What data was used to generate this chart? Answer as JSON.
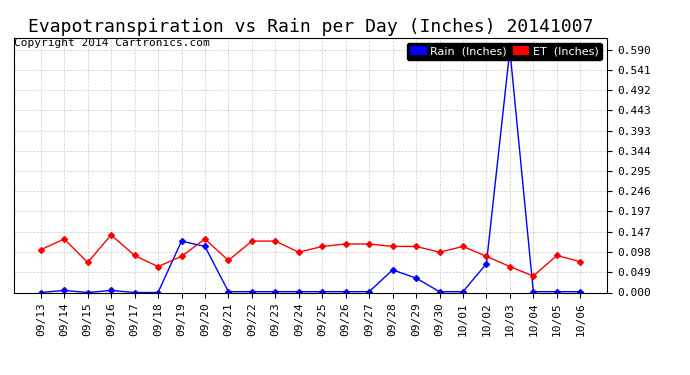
{
  "title": "Evapotranspiration vs Rain per Day (Inches) 20141007",
  "copyright": "Copyright 2014 Cartronics.com",
  "background_color": "#ffffff",
  "grid_color": "#cccccc",
  "x_labels": [
    "09/13",
    "09/14",
    "09/15",
    "09/16",
    "09/17",
    "09/18",
    "09/19",
    "09/20",
    "09/21",
    "09/22",
    "09/23",
    "09/24",
    "09/25",
    "09/26",
    "09/27",
    "09/28",
    "09/29",
    "09/30",
    "10/01",
    "10/02",
    "10/03",
    "10/04",
    "10/05",
    "10/06"
  ],
  "rain_values": [
    0.0,
    0.005,
    0.0,
    0.005,
    0.0,
    0.0,
    0.125,
    0.112,
    0.002,
    0.002,
    0.002,
    0.002,
    0.002,
    0.002,
    0.002,
    0.055,
    0.035,
    0.002,
    0.002,
    0.07,
    0.59,
    0.002,
    0.002,
    0.002
  ],
  "et_values": [
    0.104,
    0.13,
    0.073,
    0.14,
    0.09,
    0.063,
    0.088,
    0.13,
    0.078,
    0.125,
    0.125,
    0.098,
    0.112,
    0.118,
    0.118,
    0.112,
    0.112,
    0.098,
    0.112,
    0.088,
    0.063,
    0.04,
    0.09,
    0.075
  ],
  "rain_color": "#0000ff",
  "et_color": "#ff0000",
  "rain_label": "Rain  (Inches)",
  "et_label": "ET  (Inches)",
  "ylim": [
    0.0,
    0.62
  ],
  "yticks": [
    0.0,
    0.049,
    0.098,
    0.147,
    0.197,
    0.246,
    0.295,
    0.344,
    0.393,
    0.443,
    0.492,
    0.541,
    0.59
  ],
  "title_fontsize": 13,
  "copyright_fontsize": 8,
  "tick_fontsize": 8,
  "legend_fontsize": 8
}
